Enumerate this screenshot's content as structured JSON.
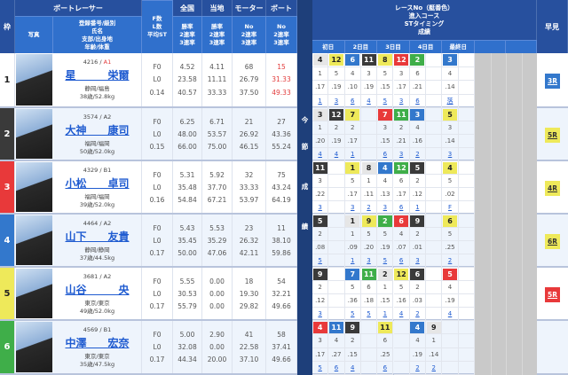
{
  "header": {
    "waku": "枠",
    "boat_racer": "ボートレーサー",
    "zenkoku": "全国",
    "touchi": "当地",
    "motor": "モーター",
    "boat": "ボート",
    "photo": "写真",
    "racer_info": "登録番号/級別\n氏名\n支部/出身地\n年齢/体重",
    "fl": "F数\nL数\n平均ST",
    "zenkoku_sub": "勝率\n2連率\n3連率",
    "touchi_sub": "勝率\n2連率\n3連率",
    "motor_sub": "No\n2連率\n3連率",
    "boat_sub": "No\n2連率\n3連率",
    "race_title": "レースNo（艇番色）\n進入コース\nSTタイミング\n成績",
    "days": [
      "初日",
      "2日目",
      "3日目",
      "4日目",
      "最終日",
      "",
      ""
    ],
    "hayami": "早見",
    "konsetsu": [
      "今",
      "節",
      "成",
      "績"
    ]
  },
  "colors": {
    "w": "#e6e6e6",
    "d": "#3a3a3a",
    "r": "#e8393a",
    "b": "#3378cc",
    "y": "#eee95a",
    "g": "#3fae49",
    "header": "#27509e",
    "subheader": "#3070cc"
  },
  "frame_colors": [
    "#ffffff",
    "#3a3a3a",
    "#e8393a",
    "#3378cc",
    "#eee95a",
    "#3fae49"
  ],
  "racers": [
    {
      "frame": "1",
      "reg": "4216 / ",
      "cls": "A1",
      "cls_red": true,
      "name": "星　　　栄爾",
      "branch": "静岡/福島",
      "age": "38歳/52.8kg",
      "f": "F0",
      "l": "L0",
      "st": "0.14",
      "zenkoku": [
        "4.52",
        "23.58",
        "40.57"
      ],
      "touchi": [
        "4.11",
        "11.11",
        "33.33"
      ],
      "motor": [
        "68",
        "26.79",
        "37.50"
      ],
      "boat": [
        "15",
        "31.33",
        "49.33"
      ],
      "boat_red": true,
      "race": {
        "no": [
          [
            "4",
            "w"
          ],
          [
            "12",
            "y"
          ],
          [
            "6",
            "b"
          ],
          [
            "11",
            "d"
          ],
          [
            "8",
            "y"
          ],
          [
            "12",
            "r"
          ],
          [
            "2",
            "g"
          ],
          [
            "",
            ""
          ],
          [
            "3",
            "b"
          ],
          [
            "",
            ""
          ]
        ],
        "course": [
          "1",
          "5",
          "4",
          "3",
          "5",
          "3",
          "6",
          "",
          "4",
          ""
        ],
        "st": [
          ".17",
          ".19",
          ".10",
          ".19",
          ".15",
          ".17",
          ".21",
          "",
          ".14",
          ""
        ],
        "result": [
          "1",
          "3",
          "6",
          "4",
          "5",
          "3",
          "6",
          "",
          "落",
          ""
        ]
      },
      "hayami": "3R",
      "hayami_color": "b"
    },
    {
      "frame": "2",
      "reg": "3574 / ",
      "cls": "A2",
      "name": "大神　　康司",
      "branch": "福岡/福岡",
      "age": "50歳/52.0kg",
      "f": "F0",
      "l": "L0",
      "st": "0.15",
      "zenkoku": [
        "6.25",
        "48.00",
        "66.00"
      ],
      "touchi": [
        "6.71",
        "53.57",
        "75.00"
      ],
      "motor": [
        "21",
        "26.92",
        "46.15"
      ],
      "boat": [
        "27",
        "43.36",
        "55.24"
      ],
      "race": {
        "no": [
          [
            "3",
            "w"
          ],
          [
            "12",
            "d"
          ],
          [
            "7",
            "y"
          ],
          [
            "",
            ""
          ],
          [
            "7",
            "r"
          ],
          [
            "11",
            "g"
          ],
          [
            "3",
            "b"
          ],
          [
            "",
            ""
          ],
          [
            "5",
            "y"
          ],
          [
            "",
            ""
          ]
        ],
        "course": [
          "1",
          "2",
          "2",
          "",
          "3",
          "2",
          "4",
          "",
          "3",
          ""
        ],
        "st": [
          ".20",
          ".19",
          ".17",
          "",
          ".15",
          ".21",
          ".16",
          "",
          ".14",
          ""
        ],
        "result": [
          "4",
          "4",
          "1",
          "",
          "6",
          "3",
          "2",
          "",
          "3",
          ""
        ]
      },
      "hayami": "5R",
      "hayami_color": "y"
    },
    {
      "frame": "3",
      "reg": "4329 / ",
      "cls": "B1",
      "name": "小松　　卓司",
      "branch": "福岡/福岡",
      "age": "39歳/52.0kg",
      "f": "F0",
      "l": "L0",
      "st": "0.16",
      "zenkoku": [
        "5.31",
        "35.48",
        "54.84"
      ],
      "touchi": [
        "5.92",
        "37.70",
        "67.21"
      ],
      "motor": [
        "32",
        "33.33",
        "53.97"
      ],
      "boat": [
        "75",
        "43.24",
        "64.19"
      ],
      "race": {
        "no": [
          [
            "11",
            "d"
          ],
          [
            "",
            ""
          ],
          [
            "1",
            "y"
          ],
          [
            "8",
            "w"
          ],
          [
            "4",
            "b"
          ],
          [
            "12",
            "g"
          ],
          [
            "5",
            "d"
          ],
          [
            "",
            ""
          ],
          [
            "4",
            "y"
          ],
          [
            "",
            ""
          ]
        ],
        "course": [
          "3",
          "",
          "5",
          "1",
          "4",
          "6",
          "2",
          "",
          "5",
          ""
        ],
        "st": [
          ".22",
          "",
          ".17",
          ".11",
          ".13",
          ".17",
          ".12",
          "",
          ".02",
          ""
        ],
        "result": [
          "3",
          "",
          "3",
          "2",
          "3",
          "6",
          "1",
          "",
          "F",
          ""
        ]
      },
      "hayami": "4R",
      "hayami_color": "y"
    },
    {
      "frame": "4",
      "reg": "4464 / ",
      "cls": "A2",
      "name": "山下　　友貴",
      "branch": "静岡/静岡",
      "age": "37歳/44.5kg",
      "f": "F0",
      "l": "L0",
      "st": "0.17",
      "zenkoku": [
        "5.43",
        "35.45",
        "50.00"
      ],
      "touchi": [
        "5.53",
        "35.29",
        "47.06"
      ],
      "motor": [
        "23",
        "26.32",
        "42.11"
      ],
      "boat": [
        "11",
        "38.10",
        "59.86"
      ],
      "race": {
        "no": [
          [
            "5",
            "d"
          ],
          [
            "",
            ""
          ],
          [
            "1",
            "w"
          ],
          [
            "9",
            "y"
          ],
          [
            "2",
            "g"
          ],
          [
            "6",
            "r"
          ],
          [
            "9",
            "d"
          ],
          [
            "",
            ""
          ],
          [
            "6",
            "y"
          ],
          [
            "",
            ""
          ]
        ],
        "course": [
          "2",
          "",
          "1",
          "5",
          "5",
          "4",
          "2",
          "",
          "5",
          ""
        ],
        "st": [
          ".08",
          "",
          ".09",
          ".20",
          ".19",
          ".07",
          ".01",
          "",
          ".25",
          ""
        ],
        "result": [
          "5",
          "",
          "1",
          "3",
          "5",
          "6",
          "3",
          "",
          "2",
          ""
        ]
      },
      "hayami": "6R",
      "hayami_color": "y"
    },
    {
      "frame": "5",
      "reg": "3681 / ",
      "cls": "A2",
      "name": "山谷　　　央",
      "branch": "東京/東京",
      "age": "49歳/52.0kg",
      "f": "F0",
      "l": "L0",
      "st": "0.17",
      "zenkoku": [
        "5.55",
        "30.53",
        "55.79"
      ],
      "touchi": [
        "0.00",
        "0.00",
        "0.00"
      ],
      "motor": [
        "18",
        "19.30",
        "29.82"
      ],
      "boat": [
        "54",
        "32.21",
        "49.66"
      ],
      "race": {
        "no": [
          [
            "9",
            "d"
          ],
          [
            "",
            ""
          ],
          [
            "7",
            "b"
          ],
          [
            "11",
            "g"
          ],
          [
            "2",
            "w"
          ],
          [
            "12",
            "y"
          ],
          [
            "6",
            "d"
          ],
          [
            "",
            ""
          ],
          [
            "5",
            "r"
          ],
          [
            "",
            ""
          ]
        ],
        "course": [
          "2",
          "",
          "5",
          "6",
          "1",
          "5",
          "2",
          "",
          "4",
          ""
        ],
        "st": [
          ".12",
          "",
          ".36",
          ".18",
          ".15",
          ".16",
          ".03",
          "",
          ".19",
          ""
        ],
        "result": [
          "3",
          "",
          "5",
          "5",
          "1",
          "4",
          "2",
          "",
          "4",
          ""
        ]
      },
      "hayami": "5R",
      "hayami_color": "r"
    },
    {
      "frame": "6",
      "reg": "4569 / ",
      "cls": "B1",
      "name": "中澤　　宏奈",
      "branch": "東京/東京",
      "age": "35歳/47.5kg",
      "f": "F0",
      "l": "L0",
      "st": "0.17",
      "zenkoku": [
        "5.00",
        "32.08",
        "44.34"
      ],
      "touchi": [
        "2.90",
        "0.00",
        "20.00"
      ],
      "motor": [
        "41",
        "22.58",
        "37.10"
      ],
      "boat": [
        "58",
        "37.41",
        "49.66"
      ],
      "race": {
        "no": [
          [
            "4",
            "r"
          ],
          [
            "11",
            "b"
          ],
          [
            "9",
            "d"
          ],
          [
            "",
            ""
          ],
          [
            "11",
            "y"
          ],
          [
            "",
            ""
          ],
          [
            "4",
            "b"
          ],
          [
            "9",
            "w"
          ],
          [
            "",
            ""
          ],
          [
            "",
            ""
          ]
        ],
        "course": [
          "3",
          "4",
          "2",
          "",
          "6",
          "",
          "4",
          "1",
          "",
          ""
        ],
        "st": [
          ".17",
          ".27",
          ".15",
          "",
          ".25",
          "",
          ".19",
          ".14",
          "",
          ""
        ],
        "result": [
          "5",
          "6",
          "4",
          "",
          "6",
          "",
          "2",
          "2",
          "",
          ""
        ]
      },
      "hayami": "",
      "hayami_color": ""
    }
  ]
}
